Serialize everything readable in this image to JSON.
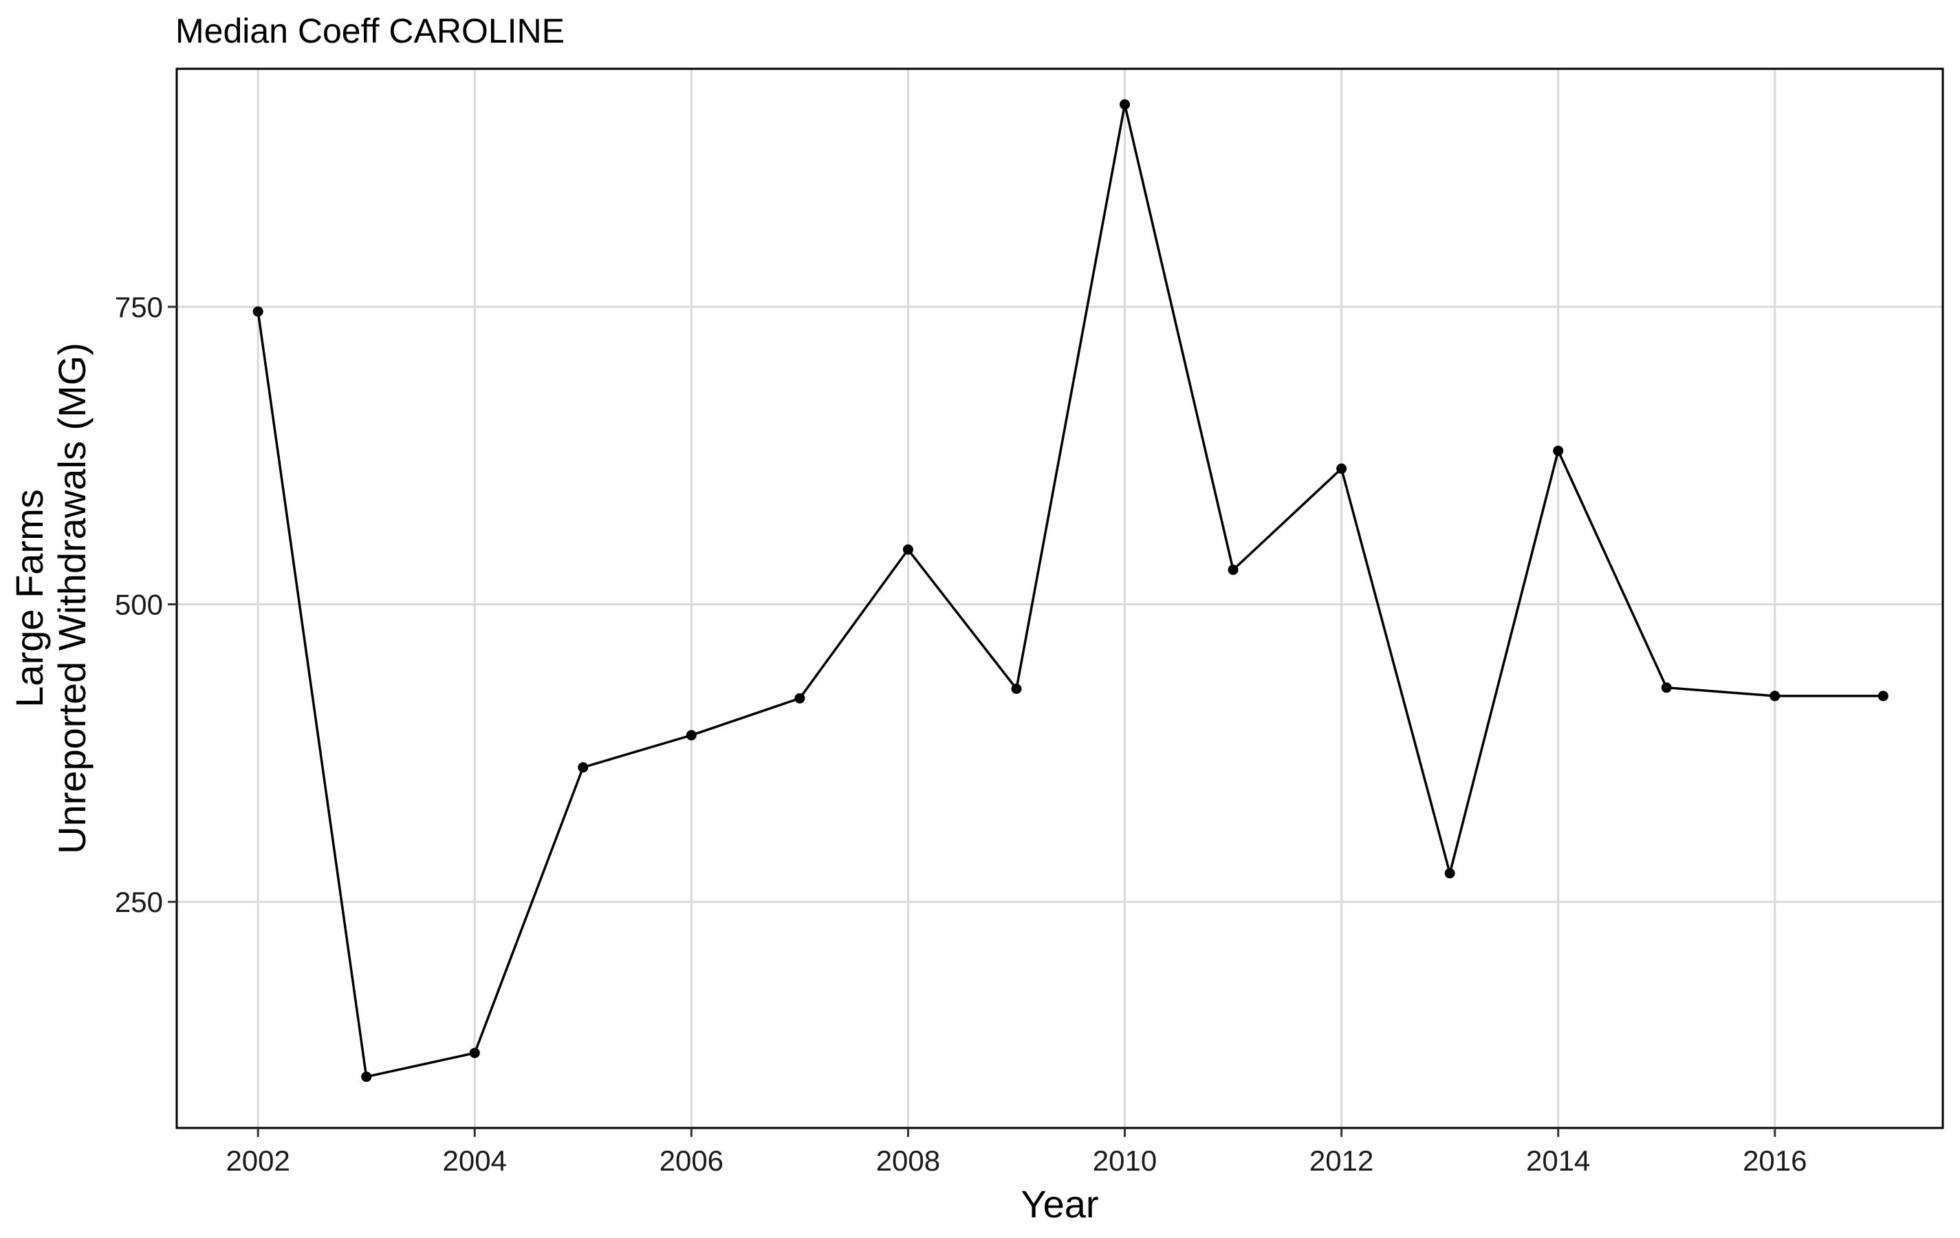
{
  "chart_data": {
    "type": "line",
    "title": "Median Coeff CAROLINE",
    "xlabel": "Year",
    "ylabel_lines": [
      "Large Farms",
      "Unreported Withdrawals (MG)"
    ],
    "x_ticks": [
      2002,
      2004,
      2006,
      2008,
      2010,
      2012,
      2014,
      2016
    ],
    "y_ticks": [
      250,
      500,
      750
    ],
    "xlim": [
      2001.25,
      2017.55
    ],
    "ylim": [
      60,
      950
    ],
    "grid": true,
    "legend": "none",
    "series": [
      {
        "color": "#000000",
        "x": [
          2002,
          2003,
          2004,
          2005,
          2006,
          2007,
          2008,
          2009,
          2010,
          2011,
          2012,
          2013,
          2014,
          2015,
          2016,
          2017
        ],
        "y": [
          746,
          103,
          123,
          363,
          390,
          421,
          546,
          429,
          920,
          529,
          614,
          274,
          629,
          430,
          423,
          423
        ]
      }
    ],
    "colors": {
      "grid": "#d9d9d9",
      "panel_border": "#000000",
      "line": "#000000",
      "point": "#000000"
    }
  }
}
